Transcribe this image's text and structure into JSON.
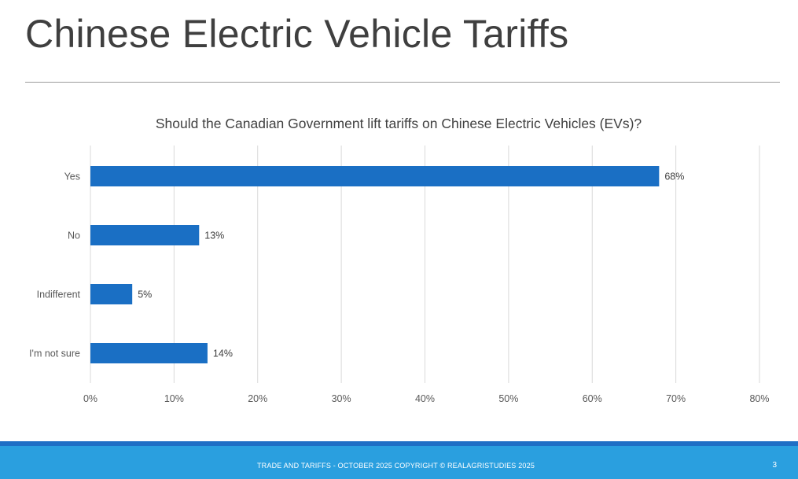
{
  "slide": {
    "title": "Chinese Electric Vehicle Tariffs",
    "footer_text": "TRADE AND TARIFFS - OCTOBER 2025 COPYRIGHT © REALAGRISTUDIES 2025",
    "page_number": "3"
  },
  "colors": {
    "bar": "#1a6fc4",
    "grid": "#d9d9d9",
    "footer": "#2a9fdf",
    "footer_accent": "#1f6fc5"
  },
  "chart_data": {
    "type": "bar",
    "orientation": "horizontal",
    "title": "Should the Canadian Government lift tariffs on Chinese Electric Vehicles (EVs)?",
    "categories": [
      "Yes",
      "No",
      "Indifferent",
      "I'm not sure"
    ],
    "values": [
      68,
      13,
      5,
      14
    ],
    "value_labels": [
      "68%",
      "13%",
      "5%",
      "14%"
    ],
    "xlim": [
      0,
      80
    ],
    "xticks": [
      0,
      10,
      20,
      30,
      40,
      50,
      60,
      70,
      80
    ],
    "xtick_labels": [
      "0%",
      "10%",
      "20%",
      "30%",
      "40%",
      "50%",
      "60%",
      "70%",
      "80%"
    ],
    "xlabel": "",
    "ylabel": "",
    "grid": true,
    "legend": "none"
  }
}
